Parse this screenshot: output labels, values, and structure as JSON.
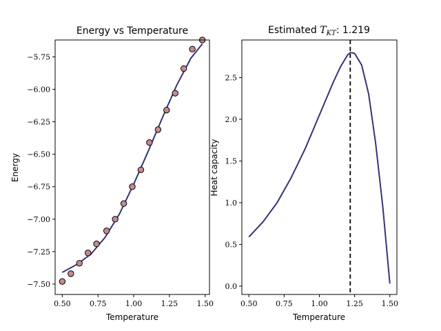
{
  "chart_data": [
    {
      "type": "scatter",
      "title": "Energy vs Temperature",
      "xlabel": "Temperature",
      "ylabel": "Energy",
      "xlim": [
        0.45,
        1.53
      ],
      "ylim": [
        -7.58,
        -5.62
      ],
      "xticks": [
        0.5,
        0.75,
        1.0,
        1.25,
        1.5
      ],
      "xtick_labels": [
        "0.50",
        "0.75",
        "1.00",
        "1.25",
        "1.50"
      ],
      "yticks": [
        -7.5,
        -7.25,
        -7.0,
        -6.75,
        -6.5,
        -6.25,
        -6.0,
        -5.75
      ],
      "ytick_labels": [
        "−7.50",
        "−7.25",
        "−7.00",
        "−6.75",
        "−6.50",
        "−6.25",
        "−6.00",
        "−5.75"
      ],
      "grid": false,
      "colors": {
        "marker_fill": "#c48a8f",
        "marker_edge": "#000000",
        "curve": "#333378"
      },
      "series": [
        {
          "kind": "points",
          "x": [
            0.5,
            0.56,
            0.62,
            0.68,
            0.74,
            0.81,
            0.87,
            0.93,
            0.99,
            1.05,
            1.11,
            1.17,
            1.23,
            1.29,
            1.35,
            1.41,
            1.48
          ],
          "y": [
            -7.48,
            -7.42,
            -7.34,
            -7.26,
            -7.19,
            -7.09,
            -7.0,
            -6.88,
            -6.75,
            -6.62,
            -6.41,
            -6.31,
            -6.16,
            -6.03,
            -5.84,
            -5.69,
            -5.62
          ]
        },
        {
          "kind": "fit_line",
          "x": [
            0.5,
            0.6,
            0.7,
            0.8,
            0.9,
            1.0,
            1.1,
            1.2,
            1.3,
            1.4,
            1.48
          ],
          "y": [
            -7.41,
            -7.35,
            -7.27,
            -7.14,
            -6.96,
            -6.73,
            -6.48,
            -6.22,
            -5.97,
            -5.76,
            -5.65
          ]
        }
      ]
    },
    {
      "type": "line",
      "title_prefix": "Estimated ",
      "title_symbol": "T",
      "title_sub": "KT",
      "title_suffix": ": 1.219",
      "xlabel": "Temperature",
      "ylabel": "Heat capacity",
      "xlim": [
        0.45,
        1.55
      ],
      "ylim": [
        -0.1,
        2.95
      ],
      "xticks": [
        0.5,
        0.75,
        1.0,
        1.25,
        1.5
      ],
      "xtick_labels": [
        "0.50",
        "0.75",
        "1.00",
        "1.25",
        "1.50"
      ],
      "yticks": [
        0.0,
        0.5,
        1.0,
        1.5,
        2.0,
        2.5
      ],
      "ytick_labels": [
        "0.0",
        "0.5",
        "1.0",
        "1.5",
        "2.0",
        "2.5"
      ],
      "grid": false,
      "vline_x": 1.219,
      "colors": {
        "curve": "#333378",
        "vline": "#000000"
      },
      "series": [
        {
          "x": [
            0.5,
            0.6,
            0.7,
            0.8,
            0.9,
            1.0,
            1.1,
            1.15,
            1.2,
            1.22,
            1.25,
            1.3,
            1.35,
            1.4,
            1.45,
            1.5
          ],
          "y": [
            0.59,
            0.77,
            1.0,
            1.3,
            1.65,
            2.05,
            2.45,
            2.63,
            2.77,
            2.8,
            2.79,
            2.65,
            2.3,
            1.7,
            0.95,
            0.03
          ]
        }
      ]
    }
  ]
}
